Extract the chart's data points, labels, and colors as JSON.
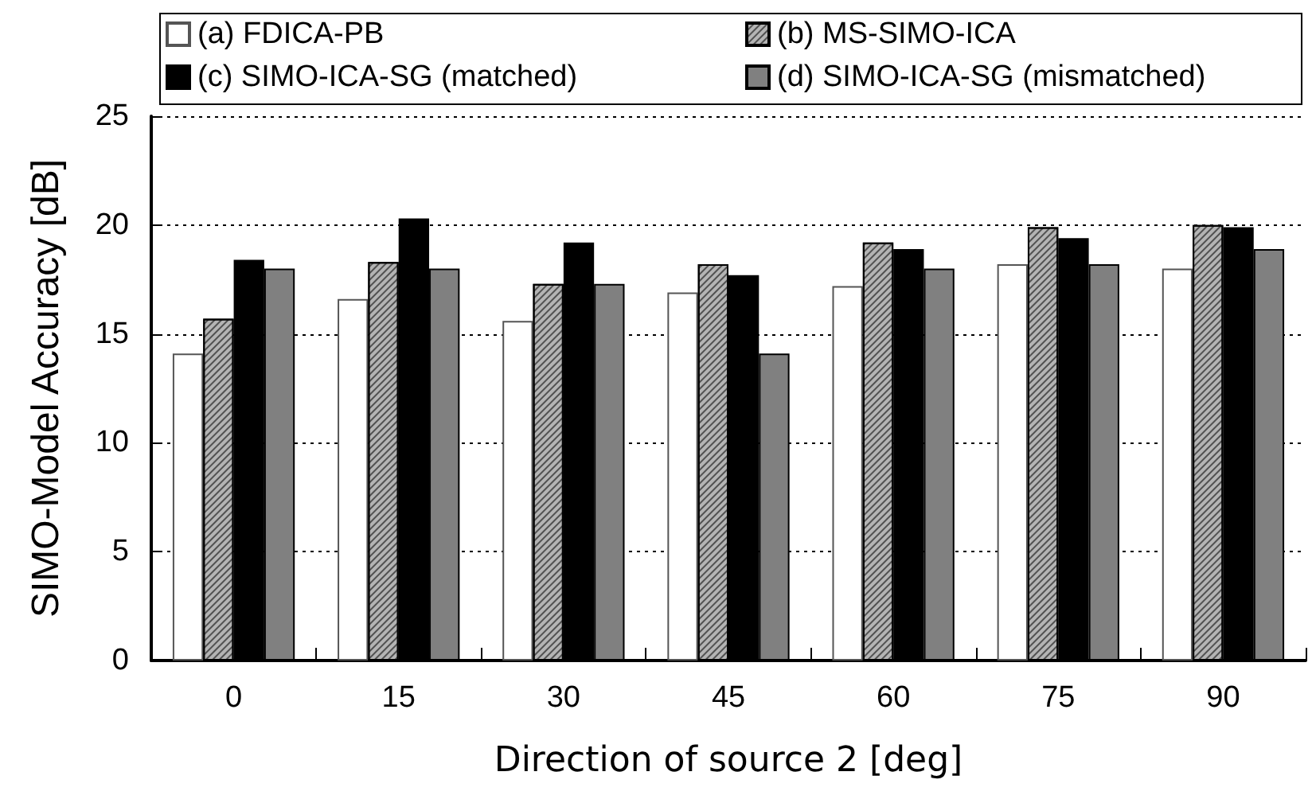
{
  "chart_data": {
    "type": "bar",
    "xlabel": "Direction of source 2 [deg]",
    "ylabel": "SIMO-Model Accuracy [dB]",
    "categories": [
      "0",
      "15",
      "30",
      "45",
      "60",
      "75",
      "90"
    ],
    "series": [
      {
        "name": "(a) FDICA-PB",
        "color": "#ffffff",
        "values": [
          14.1,
          16.6,
          15.6,
          16.9,
          17.2,
          18.2,
          18.0
        ]
      },
      {
        "name": "(b) MS-SIMO-ICA",
        "color": "#b4b4b4",
        "values": [
          15.7,
          18.3,
          17.3,
          18.2,
          19.2,
          19.9,
          20.0
        ]
      },
      {
        "name": "(c) SIMO-ICA-SG (matched)",
        "color": "#000000",
        "values": [
          18.4,
          20.3,
          19.2,
          17.7,
          18.9,
          19.4,
          19.9
        ]
      },
      {
        "name": "(d) SIMO-ICA-SG (mismatched)",
        "color": "#808080",
        "values": [
          18.0,
          18.0,
          17.3,
          14.1,
          18.0,
          18.2,
          18.9
        ]
      }
    ],
    "ylim": [
      0,
      25
    ],
    "yticks": [
      0,
      5,
      10,
      15,
      20,
      25
    ],
    "grid": "y",
    "legend": "top"
  }
}
